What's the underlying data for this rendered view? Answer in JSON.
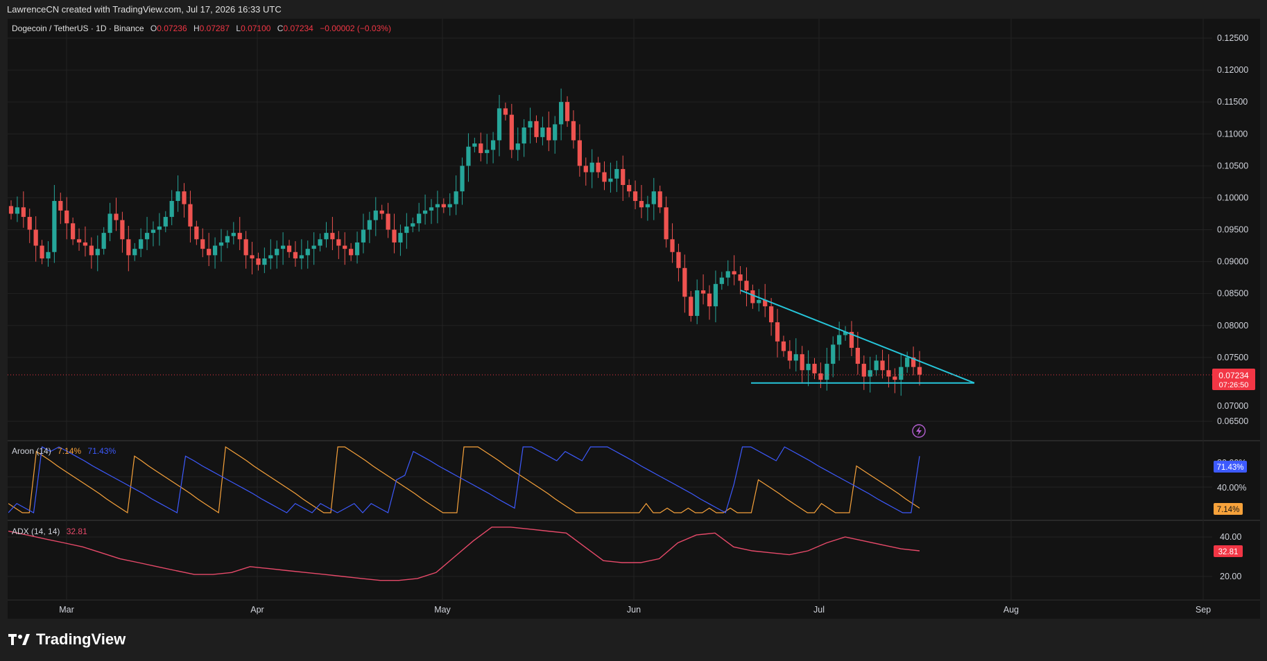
{
  "header": {
    "credit": "LawrenceCN created with TradingView.com, Jul 17, 2026 16:33 UTC"
  },
  "legend": {
    "symbol": "Dogecoin / TetherUS · 1D · Binance",
    "o_label": "O",
    "o_value": "0.07236",
    "h_label": "H",
    "h_value": "0.07287",
    "l_label": "L",
    "l_value": "0.07100",
    "c_label": "C",
    "c_value": "0.07234",
    "change": "−0.00002 (−0.03%)"
  },
  "current_price": {
    "value": "0.07234",
    "countdown": "07:26:50",
    "hidden_tick": "0.07000"
  },
  "aroon": {
    "name": "Aroon (14)",
    "up": "7.14%",
    "down": "71.43%",
    "scale_top": "80.00%",
    "scale_mid": "40.00%"
  },
  "adx": {
    "name": "ADX (14, 14)",
    "value": "32.81",
    "scale_a": "40.00",
    "scale_b": "20.00"
  },
  "brand": {
    "name": "TradingView",
    "logo_icon": "tradingview-logo-icon"
  },
  "alert_icon": "lightning-icon",
  "colors": {
    "up": "#26a69a",
    "down": "#ef5350",
    "trendline": "#26c6da",
    "aroon_up": "#f7a23b",
    "aroon_down": "#3d5afe",
    "adx": "#e84a6a",
    "price_badge": "#f23645"
  },
  "chart_data": {
    "type": "candlestick",
    "title": "Dogecoin / TetherUS · 1D · Binance",
    "x_ticks": [
      "Mar",
      "Apr",
      "May",
      "Jun",
      "Jul",
      "Aug",
      "Sep"
    ],
    "y_ticks": [
      "0.12500",
      "0.12000",
      "0.11500",
      "0.11000",
      "0.10500",
      "0.10000",
      "0.09500",
      "0.09000",
      "0.08500",
      "0.08000",
      "0.07500",
      "0.06500"
    ],
    "ylim": [
      0.0625,
      0.1275
    ],
    "close_series_approx": [
      0.0975,
      0.0985,
      0.097,
      0.095,
      0.0925,
      0.0905,
      0.0915,
      0.0995,
      0.098,
      0.096,
      0.0935,
      0.093,
      0.0925,
      0.091,
      0.092,
      0.0945,
      0.0975,
      0.0965,
      0.0935,
      0.091,
      0.092,
      0.0935,
      0.0945,
      0.095,
      0.0955,
      0.097,
      0.0995,
      0.101,
      0.099,
      0.0955,
      0.0935,
      0.092,
      0.091,
      0.0925,
      0.093,
      0.094,
      0.0945,
      0.0935,
      0.091,
      0.0905,
      0.0895,
      0.0905,
      0.091,
      0.092,
      0.0925,
      0.0915,
      0.0905,
      0.091,
      0.092,
      0.0925,
      0.0935,
      0.0945,
      0.0935,
      0.0925,
      0.092,
      0.091,
      0.093,
      0.095,
      0.0965,
      0.098,
      0.0975,
      0.095,
      0.093,
      0.0945,
      0.0955,
      0.096,
      0.0975,
      0.098,
      0.0985,
      0.099,
      0.0985,
      0.099,
      0.101,
      0.105,
      0.108,
      0.1085,
      0.107,
      0.1075,
      0.109,
      0.114,
      0.113,
      0.1075,
      0.1085,
      0.111,
      0.112,
      0.1095,
      0.111,
      0.109,
      0.1115,
      0.115,
      0.112,
      0.109,
      0.105,
      0.104,
      0.1055,
      0.104,
      0.1025,
      0.103,
      0.1045,
      0.102,
      0.101,
      0.0995,
      0.0985,
      0.099,
      0.101,
      0.0985,
      0.0935,
      0.0915,
      0.089,
      0.0845,
      0.0815,
      0.0855,
      0.085,
      0.083,
      0.0865,
      0.0875,
      0.0885,
      0.088,
      0.087,
      0.0855,
      0.0835,
      0.084,
      0.083,
      0.0805,
      0.0775,
      0.076,
      0.0745,
      0.0755,
      0.073,
      0.074,
      0.0725,
      0.0715,
      0.074,
      0.077,
      0.0785,
      0.079,
      0.0765,
      0.074,
      0.072,
      0.073,
      0.0745,
      0.073,
      0.072,
      0.0715,
      0.0735,
      0.075,
      0.0735,
      0.0723
    ],
    "triangle": {
      "upper_from": 0.0855,
      "upper_to": 0.071,
      "support": 0.071
    },
    "aroon_up_approx": [
      14,
      7,
      0,
      0,
      93,
      86,
      79,
      71,
      64,
      57,
      50,
      43,
      36,
      29,
      21,
      14,
      7,
      0,
      86,
      79,
      71,
      64,
      57,
      50,
      43,
      36,
      29,
      21,
      14,
      7,
      0,
      100,
      93,
      86,
      79,
      71,
      64,
      57,
      50,
      43,
      36,
      29,
      21,
      14,
      7,
      0,
      0,
      100,
      100,
      93,
      86,
      79,
      71,
      64,
      57,
      50,
      43,
      36,
      29,
      21,
      14,
      7,
      0,
      0,
      0,
      100,
      100,
      100,
      93,
      86,
      79,
      71,
      64,
      57,
      50,
      43,
      36,
      29,
      21,
      14,
      7,
      0,
      0,
      0,
      0,
      0,
      0,
      0,
      0,
      0,
      0,
      14,
      0,
      0,
      7,
      0,
      0,
      7,
      0,
      0,
      7,
      0,
      0,
      7,
      0,
      0,
      0,
      50,
      43,
      36,
      29,
      21,
      14,
      7,
      0,
      0,
      14,
      7,
      0,
      0,
      0,
      71,
      64,
      57,
      50,
      43,
      36,
      29,
      21,
      14,
      7
    ],
    "aroon_down_approx": [
      0,
      14,
      7,
      0,
      100,
      93,
      100,
      93,
      86,
      79,
      71,
      64,
      57,
      50,
      43,
      36,
      29,
      21,
      14,
      7,
      0,
      86,
      79,
      71,
      64,
      57,
      50,
      43,
      36,
      29,
      21,
      14,
      7,
      0,
      14,
      7,
      0,
      14,
      7,
      0,
      7,
      14,
      0,
      14,
      7,
      0,
      50,
      57,
      93,
      86,
      79,
      71,
      64,
      57,
      50,
      43,
      36,
      29,
      21,
      14,
      7,
      100,
      100,
      93,
      86,
      79,
      93,
      86,
      79,
      100,
      100,
      100,
      93,
      86,
      79,
      71,
      64,
      57,
      50,
      43,
      36,
      29,
      21,
      14,
      7,
      0,
      43,
      100,
      100,
      93,
      86,
      79,
      100,
      93,
      86,
      79,
      71,
      64,
      57,
      50,
      43,
      36,
      29,
      21,
      14,
      7,
      0,
      0,
      86
    ],
    "adx_approx": [
      43,
      41,
      39,
      37,
      35,
      32,
      29,
      27,
      25,
      23,
      21,
      21,
      22,
      25,
      24,
      23,
      22,
      21,
      20,
      19,
      18,
      18,
      19,
      22,
      30,
      38,
      45,
      45,
      44,
      43,
      42,
      35,
      28,
      27,
      27,
      29,
      37,
      41,
      42,
      35,
      33,
      32,
      31,
      33,
      37,
      40,
      38,
      36,
      34,
      33
    ],
    "aroon_ylim": [
      0,
      100
    ],
    "adx_ylim": [
      10,
      46
    ]
  }
}
